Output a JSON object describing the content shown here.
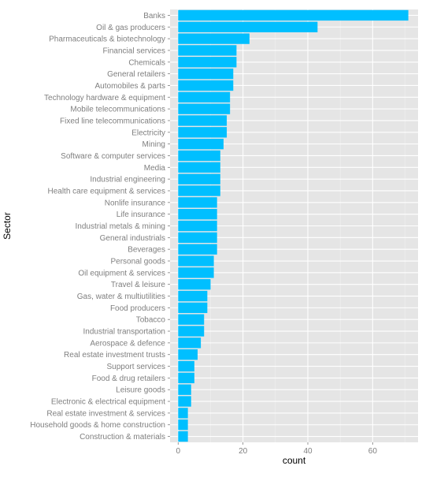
{
  "chart_data": {
    "type": "bar",
    "orientation": "horizontal",
    "title": "",
    "xlabel": "count",
    "ylabel": "Sector",
    "xlim": [
      -2.5,
      74
    ],
    "xticks": [
      0,
      20,
      40,
      60
    ],
    "grid": true,
    "colors": {
      "bar": "#00BFFF",
      "panel": "#E5E5E5",
      "grid": "#FFFFFF",
      "tick_text": "#7F7F7F",
      "title_text": "#000000"
    },
    "categories": [
      "Banks",
      "Oil & gas producers",
      "Pharmaceuticals & biotechnology",
      "Financial services",
      "Chemicals",
      "General retailers",
      "Automobiles & parts",
      "Technology hardware & equipment",
      "Mobile telecommunications",
      "Fixed line telecommunications",
      "Electricity",
      "Mining",
      "Software & computer services",
      "Media",
      "Industrial engineering",
      "Health care equipment & services",
      "Nonlife insurance",
      "Life insurance",
      "Industrial metals & mining",
      "General industrials",
      "Beverages",
      "Personal goods",
      "Oil equipment & services",
      "Travel & leisure",
      "Gas, water & multiutilities",
      "Food producers",
      "Tobacco",
      "Industrial transportation",
      "Aerospace & defence",
      "Real estate investment trusts",
      "Support services",
      "Food & drug retailers",
      "Leisure goods",
      "Electronic & electrical equipment",
      "Real estate investment & services",
      "Household goods & home construction",
      "Construction & materials"
    ],
    "values": [
      71,
      43,
      22,
      18,
      18,
      17,
      17,
      16,
      16,
      15,
      15,
      14,
      13,
      13,
      13,
      13,
      12,
      12,
      12,
      12,
      12,
      11,
      11,
      10,
      9,
      9,
      8,
      8,
      7,
      6,
      5,
      5,
      4,
      4,
      3,
      3,
      3
    ]
  }
}
